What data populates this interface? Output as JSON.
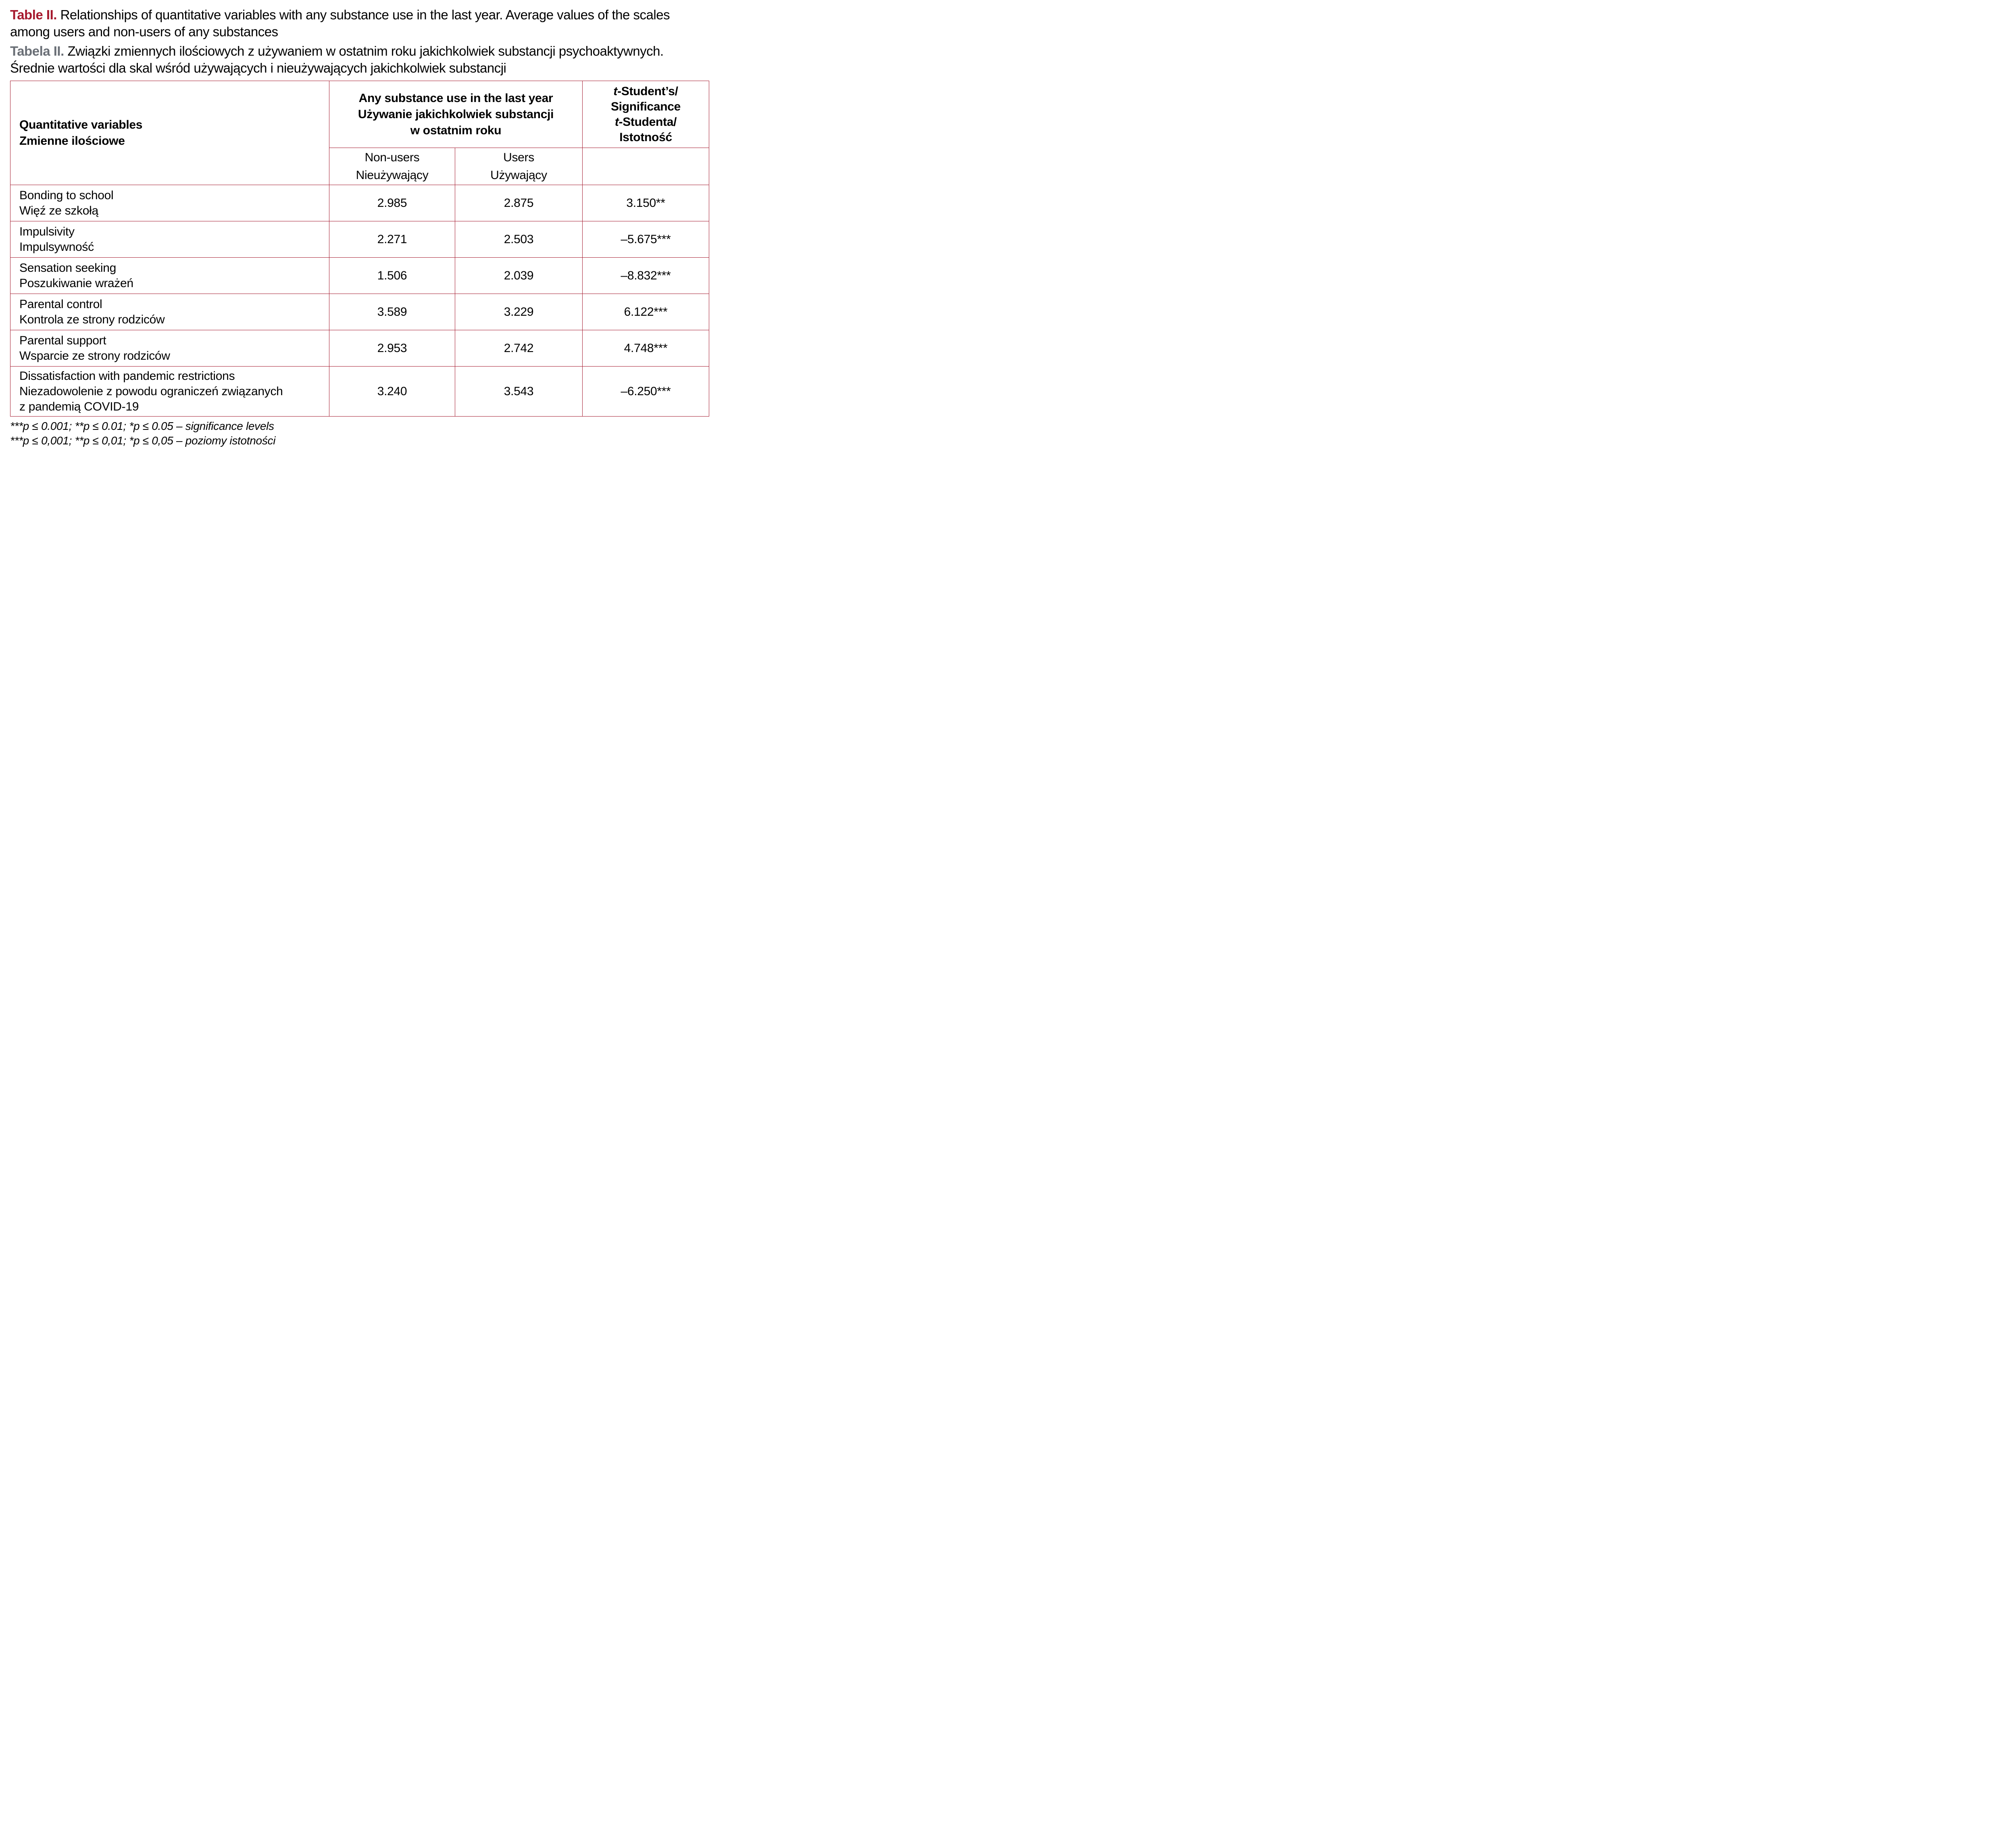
{
  "colors": {
    "accent_red": "#a51c30",
    "title_red": "#a6192e",
    "label_gray": "#6a6f76",
    "text_black": "#000000"
  },
  "title": {
    "en_label": "Table II.",
    "en_line1": "Relationships of quantitative variables with any substance use in the last year. Average values of the scales",
    "en_line2": "among users and non-users of any substances",
    "pl_label": "Tabela II.",
    "pl_line1": "Związki zmiennych ilościowych z używaniem w ostatnim roku jakichkolwiek substancji psychoaktywnych.",
    "pl_line2": "Średnie wartości dla skal wśród używających i nieużywających jakichkolwiek substancji"
  },
  "table": {
    "col1_header": {
      "en": "Quantitative variables",
      "pl": "Zmienne ilościowe"
    },
    "col23_header": {
      "line1": "Any substance use in the last year",
      "line2": "Używanie jakichkolwiek substancji",
      "line3": "w ostatnim roku"
    },
    "col4_header": {
      "line1_italic": "t",
      "line1_rest": "-Student’s/",
      "line2": "Significance",
      "line3_italic": "t",
      "line3_rest": "-Studenta/",
      "line4": "Istotność"
    },
    "subheaders": {
      "non_users": {
        "en": "Non-users",
        "pl": "Nieużywający"
      },
      "users": {
        "en": "Users",
        "pl": "Używający"
      }
    },
    "rows": [
      {
        "variable_lines": [
          "Bonding to school",
          "Więź ze szkołą"
        ],
        "non_users": "2.985",
        "users": "2.875",
        "t_value": "3.150**"
      },
      {
        "variable_lines": [
          "Impulsivity",
          "Impulsywność"
        ],
        "non_users": "2.271",
        "users": "2.503",
        "t_value": "–5.675***"
      },
      {
        "variable_lines": [
          "Sensation seeking",
          "Poszukiwanie wrażeń"
        ],
        "non_users": "1.506",
        "users": "2.039",
        "t_value": "–8.832***"
      },
      {
        "variable_lines": [
          "Parental control",
          "Kontrola ze strony rodziców"
        ],
        "non_users": "3.589",
        "users": "3.229",
        "t_value": "6.122***"
      },
      {
        "variable_lines": [
          "Parental support",
          "Wsparcie ze strony rodziców"
        ],
        "non_users": "2.953",
        "users": "2.742",
        "t_value": "4.748***"
      },
      {
        "variable_lines": [
          "Dissatisfaction with pandemic restrictions",
          "Niezadowolenie z powodu ograniczeń związanych",
          "z pandemią COVID-19"
        ],
        "non_users": "3.240",
        "users": "3.543",
        "t_value": "–6.250***"
      }
    ]
  },
  "footnotes": {
    "en": "***p ≤ 0.001; **p ≤ 0.01; *p ≤ 0.05 – significance levels",
    "pl": "***p ≤ 0,001; **p ≤ 0,01; *p ≤ 0,05 – poziomy istotności"
  }
}
